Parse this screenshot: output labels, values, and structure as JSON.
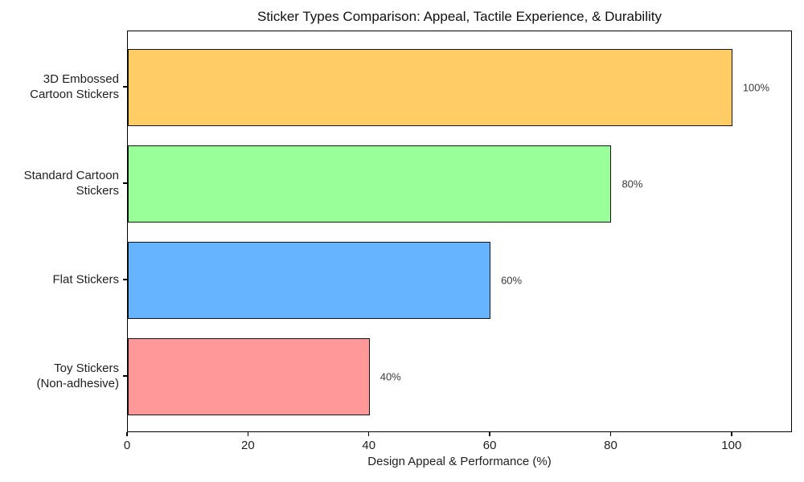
{
  "chart_data": {
    "type": "bar",
    "orientation": "horizontal",
    "title": "Sticker Types Comparison: Appeal, Tactile Experience, & Durability",
    "xlabel": "Design Appeal & Performance (%)",
    "categories": [
      "3D Embossed\nCartoon Stickers",
      "Standard Cartoon\nStickers",
      "Flat Stickers",
      "Toy Stickers\n(Non-adhesive)"
    ],
    "values": [
      100,
      80,
      60,
      40
    ],
    "value_labels": [
      "100%",
      "80%",
      "60%",
      "40%"
    ],
    "bar_colors": [
      "#ffcc66",
      "#99ff99",
      "#66b3ff",
      "#ff9999"
    ],
    "bar_edge_color": "#141414",
    "xlim": [
      0,
      110
    ],
    "xticks": [
      0,
      20,
      40,
      60,
      80,
      100
    ],
    "grid": false,
    "legend": false,
    "plot_border_color": "#000000",
    "background_color": "#ffffff"
  }
}
